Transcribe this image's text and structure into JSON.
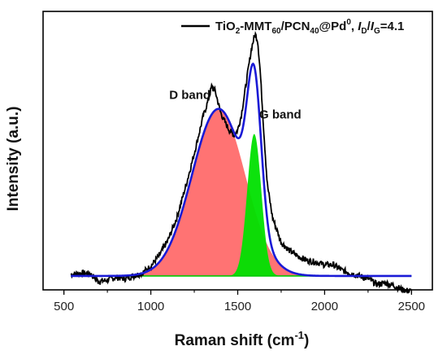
{
  "chart_data": {
    "type": "line",
    "title": "",
    "xlabel": "Raman shift (cm",
    "xlabel_sup": "-1",
    "xlabel_close": ")",
    "ylabel": "Intensity (a.u.)",
    "xlim": [
      380,
      2620
    ],
    "xticks": [
      500,
      1000,
      1500,
      2000,
      2500
    ],
    "tick_labels": [
      "500",
      "1000",
      "1500",
      "2000",
      "2500"
    ],
    "ylim": [
      0,
      1.0
    ],
    "ytick_labels_visible": false,
    "legend": {
      "placement": "top-right",
      "parts": [
        {
          "text": "TiO",
          "style": "normal"
        },
        {
          "text": "2",
          "style": "sub"
        },
        {
          "text": "-MMT",
          "style": "normal"
        },
        {
          "text": "60",
          "style": "sub"
        },
        {
          "text": "/PCN",
          "style": "normal"
        },
        {
          "text": "40",
          "style": "sub"
        },
        {
          "text": "@Pd",
          "style": "normal"
        },
        {
          "text": "0",
          "style": "sup"
        },
        {
          "text": ", ",
          "style": "normal"
        },
        {
          "text": "I",
          "style": "italic"
        },
        {
          "text": "D",
          "style": "sub"
        },
        {
          "text": "/",
          "style": "normal"
        },
        {
          "text": "I",
          "style": "italic"
        },
        {
          "text": "G",
          "style": "sub"
        },
        {
          "text": "=4.1",
          "style": "normal"
        }
      ]
    },
    "annotations": [
      {
        "text": "D band",
        "x": 1225,
        "y": 0.685
      },
      {
        "text": "G band",
        "x": 1745,
        "y": 0.615
      }
    ],
    "baseline": 0.05,
    "series": [
      {
        "name": "TiO2-MMT60/PCN40@Pd0",
        "role": "experimental",
        "color": "#000000",
        "points": [
          [
            540,
            0.055
          ],
          [
            600,
            0.06
          ],
          [
            650,
            0.058
          ],
          [
            700,
            0.03
          ],
          [
            750,
            0.035
          ],
          [
            800,
            0.045
          ],
          [
            850,
            0.04
          ],
          [
            900,
            0.05
          ],
          [
            950,
            0.06
          ],
          [
            1000,
            0.085
          ],
          [
            1050,
            0.125
          ],
          [
            1100,
            0.18
          ],
          [
            1150,
            0.26
          ],
          [
            1200,
            0.37
          ],
          [
            1250,
            0.49
          ],
          [
            1300,
            0.62
          ],
          [
            1330,
            0.68
          ],
          [
            1350,
            0.73
          ],
          [
            1370,
            0.715
          ],
          [
            1400,
            0.64
          ],
          [
            1420,
            0.61
          ],
          [
            1450,
            0.575
          ],
          [
            1480,
            0.555
          ],
          [
            1500,
            0.575
          ],
          [
            1520,
            0.625
          ],
          [
            1540,
            0.705
          ],
          [
            1560,
            0.79
          ],
          [
            1580,
            0.87
          ],
          [
            1600,
            0.92
          ],
          [
            1615,
            0.895
          ],
          [
            1630,
            0.78
          ],
          [
            1650,
            0.57
          ],
          [
            1670,
            0.38
          ],
          [
            1700,
            0.26
          ],
          [
            1750,
            0.17
          ],
          [
            1800,
            0.14
          ],
          [
            1850,
            0.12
          ],
          [
            1900,
            0.105
          ],
          [
            1950,
            0.1
          ],
          [
            2000,
            0.09
          ],
          [
            2050,
            0.09
          ],
          [
            2100,
            0.07
          ],
          [
            2150,
            0.06
          ],
          [
            2200,
            0.05
          ],
          [
            2250,
            0.04
          ],
          [
            2300,
            0.02
          ],
          [
            2350,
            0.025
          ],
          [
            2400,
            0.015
          ],
          [
            2450,
            0.0
          ],
          [
            2500,
            -0.005
          ]
        ]
      },
      {
        "name": "D band",
        "role": "fit",
        "color": "#ff5a5a",
        "center": 1390,
        "amplitude": 0.6,
        "fwhm": 360
      },
      {
        "name": "G band",
        "role": "fit",
        "color": "#00e000",
        "center": 1595,
        "amplitude": 0.51,
        "fwhm": 95
      },
      {
        "name": "Fitted envelope",
        "role": "envelope",
        "color": "#1a1ad6"
      }
    ]
  }
}
